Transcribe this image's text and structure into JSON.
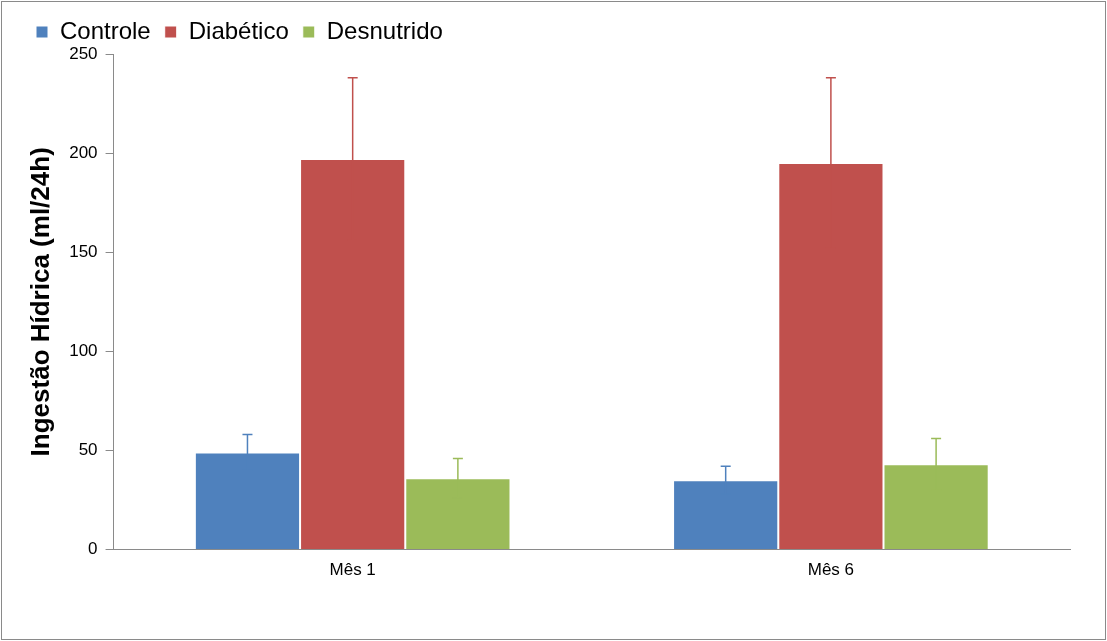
{
  "chart_data": {
    "type": "bar",
    "ylabel": "Ingestão Hídrica (ml/24h)",
    "categories": [
      "Mês 1",
      "Mês 6"
    ],
    "series": [
      {
        "name": "Controle",
        "color": "#4f81bd",
        "values": [
          49,
          35
        ],
        "errors": [
          9,
          7
        ]
      },
      {
        "name": "Diabético",
        "color": "#c0504d",
        "values": [
          197,
          195
        ],
        "errors": [
          41,
          43
        ]
      },
      {
        "name": "Desnutrido",
        "color": "#9bbb59",
        "values": [
          36,
          43
        ],
        "errors": [
          10,
          13
        ]
      }
    ],
    "ylim": [
      0,
      250
    ],
    "yticks": [
      0,
      50,
      100,
      150,
      200,
      250
    ],
    "grid": false,
    "legend": "top"
  }
}
